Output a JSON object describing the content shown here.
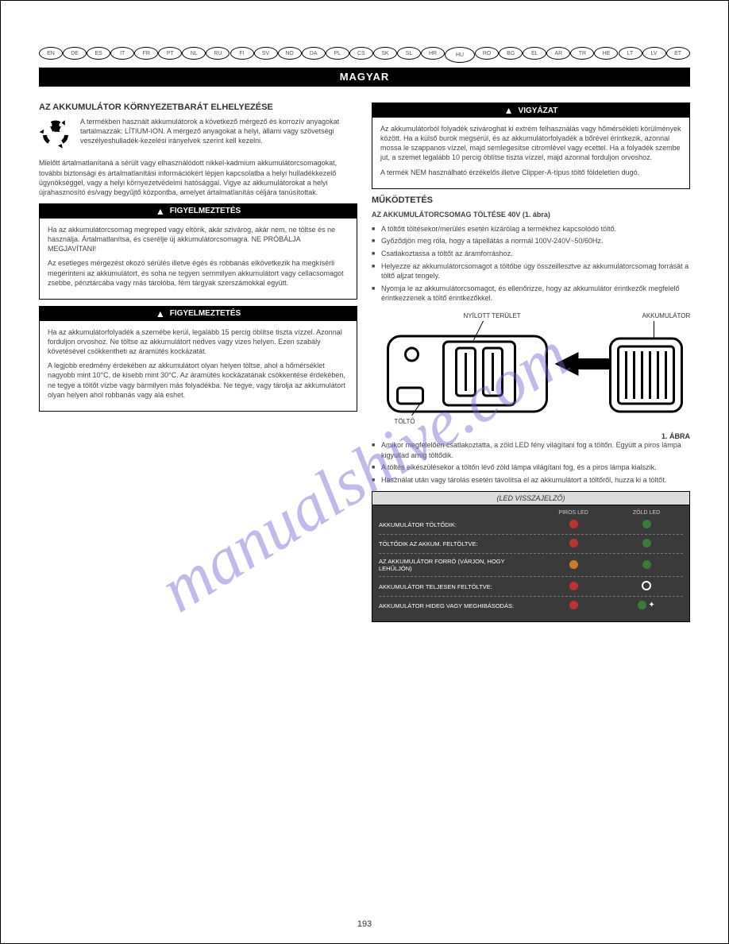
{
  "langs": [
    "EN",
    "DE",
    "ES",
    "IT",
    "FR",
    "PT",
    "NL",
    "RU",
    "FI",
    "SV",
    "NO",
    "DA",
    "PL",
    "CS",
    "SK",
    "SL",
    "HR",
    "HU",
    "RO",
    "BG",
    "EL",
    "AR",
    "TR",
    "HE",
    "LT",
    "LV",
    "ET"
  ],
  "active_lang_index": 17,
  "title_bar": "MAGYAR",
  "watermark": "manualshive.com",
  "page_number": "193",
  "left": {
    "section1_title": "AZ AKKUMULÁTOR KÖRNYEZETBARÁT ELHELYEZÉSE",
    "recycle_para": "A termékben használt akkumulátorok a következő mérgező és korrozív anyagokat tartalmazzák: LÍTIUM-ION. A mérgező anyagokat a helyi, állami vagy szövetségi veszélyeshulladék-kezelési irányelvek szerint kell kezelni.",
    "para2": "Mielőtt ártalmatlanítaná a sérült vagy elhasználódott nikkel-kadmium akkumulátorcsomagokat, további biztonsági és ártalmatlanítási információkért lépjen kapcsolatba a helyi hulladékkezelő ügynökséggel, vagy a helyi környezetvédelmi hatósággal. Vigye az akkumulátorokat a helyi újrahasznosító és/vagy begyűjtő központba, amelyet ártalmatlanítás céljára tanúsítottak.",
    "warn1_header": "FIGYELMEZTETÉS",
    "warn1_body1": "Ha az akkumulátorcsomag megreped vagy eltörik, akár szivárog, akár nem, ne töltse és ne használja. Ártalmatlanítsa, és cserélje új akkumulátorcsomagra. NE PRÓBÁLJA MEGJAVÍTANI!",
    "warn1_body2": "Az esetleges mérgezést okozó sérülés illetve égés és robbanás elkövetkezik ha megkísérli megérinteni az akkumulátort, és soha ne tegyen semmilyen akkumulátort vagy cellacsomagot zsebbe, pénztárcába vagy más tárolóba, fém tárgyak szerszámokkal együtt.",
    "warn2_header": "FIGYELMEZTETÉS",
    "warn2_body1": "Ha az akkumulátorfolyadék a szemébe kerül, legalább 15 percig öblítse tiszta vízzel. Azonnal forduljon orvoshoz. Ne töltse az akkumulátort nedves vagy vizes helyen. Ezen szabály követésével csökkentheti az áramütés kockázatát.",
    "warn2_body2": "A legjobb eredmény érdekében az akkumulátort olyan helyen töltse, ahol a hőmérséklet nagyobb mint 10°C, de kisebb mint 30°C. Az áramütés kockázatának csökkentése érdekében, ne tegye a töltőt vízbe vagy bármilyen más folyadékba. Ne tegye, vagy tárolja az akkumulátort olyan helyen ahol robbanás vagy alá eshet."
  },
  "right": {
    "warn3_header": "VIGYÁZAT",
    "warn3_body1": "Az akkumulátorból folyadék szivároghat ki extrém felhasználás vagy hőmérsékleti körülmények között. Ha a külső burok megsérül, és az akkumulátorfolyadék a bőrével érintkezik, azonnal mossa le szappanos vízzel, majd semlegesítse citromlével vagy ecettel. Ha a folyadék szembe jut, a szemet legalább 10 percig öblítse tiszta vízzel, majd azonnal forduljon orvoshoz.",
    "warn3_body2": "A termék NEM használható érzékelős illetve Clipper-A-típus töltő földeletlen dugó.",
    "section2_title": "MŰKÖDTETÉS",
    "op_title": "AZ AKKUMULÁTORCSOMAG TÖLTÉSE   40V (1. ábra)",
    "bullets": [
      "A töltőtt töltésekor/merülés esetén kizárólag a termékhez kapcsolódó töltő.",
      "Győződjön meg róla, hogy a tápellátás a normál 100V-240V~50/60Hz.",
      "Csatlakoztassa a töltőt az áramforráshoz.",
      "Helyezze az akkumulátorcsomagot a töltőbe úgy összeillesztve az akkumulátorcsomag forrását a töltő aljzat tengely.",
      "Nyomja le az akkumulátorcsomagot, és ellenőrizze, hogy az akkumulátor érintkezők megfelelő érintkezzenek a töltő érintkezőkkel."
    ],
    "diagram": {
      "label_battery": "AKKUMULÁTOR",
      "label_slot": "NYÍLOTT TERÜLET",
      "label_charger": "TÖLTŐ",
      "arrow_color": "#000000"
    },
    "fig_label": "1. ÁBRA",
    "bullets2": [
      "Amikor megfelelően csatlakoztatta, a zöld LED fény világítani fog a töltőn. Együtt a piros lámpa kigyullad amíg töltődik.",
      "A töltés elkészülésekor a töltőn lévő zöld lámpa világítani fog, és a piros lámpa kialszik.",
      "Használat után vagy tárolás esetén távolítsa el az akkumulátort a töltőről, huzza ki a töltőt."
    ],
    "led_table": {
      "title": "(LED VISSZAJELZŐ)",
      "col_a": "",
      "col_b": "PIROS LED",
      "col_c": "ZÖLD LED",
      "rows": [
        {
          "label": "AKKUMULÁTOR TÖLTŐDIK:",
          "b": "dot-red",
          "c": "dot-green"
        },
        {
          "label": "TÖLTŐDIK AZ AKKUM. FELTÖLTVE:",
          "b": "dot-red",
          "c": "dot-green"
        },
        {
          "label": "AZ AKKUMULÁTOR FORRÓ (VÁRJON, HOGY LEHŰLJÖN)",
          "b": "dot-orange",
          "c": "dot-green"
        },
        {
          "label": "AKKUMULÁTOR TELJESEN FELTÖLTVE:",
          "b": "dot-red",
          "c": "ring"
        },
        {
          "label": "AKKUMULÁTOR HIDEG VAGY MEGHIBÁSODÁS:",
          "b": "dot-red",
          "c": "flash"
        }
      ]
    }
  }
}
